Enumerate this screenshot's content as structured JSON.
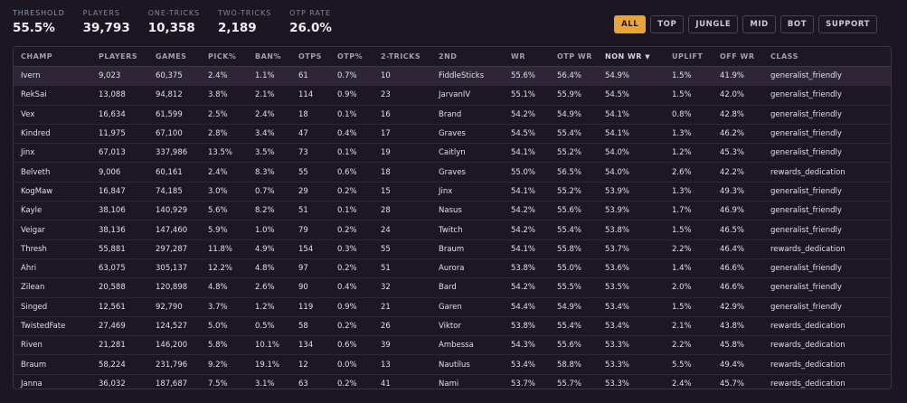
{
  "stats": [
    {
      "label": "THRESHOLD",
      "value": "55.5%"
    },
    {
      "label": "PLAYERS",
      "value": "39,793"
    },
    {
      "label": "ONE-TRICKS",
      "value": "10,358"
    },
    {
      "label": "TWO-TRICKS",
      "value": "2,189"
    },
    {
      "label": "OTP RATE",
      "value": "26.0%"
    }
  ],
  "filters": [
    "ALL",
    "TOP",
    "JUNGLE",
    "MID",
    "BOT",
    "SUPPORT"
  ],
  "active_filter": "ALL",
  "columns": [
    "CHAMP",
    "PLAYERS",
    "GAMES",
    "PICK%",
    "BAN%",
    "OTPS",
    "OTP%",
    "2-TRICKS",
    "2ND",
    "WR",
    "OTP WR",
    "NON WR",
    "UPLIFT",
    "OFF WR",
    "CLASS"
  ],
  "sort_indicator": "▼",
  "rows": [
    [
      "Ivern",
      "9,023",
      "60,375",
      "2.4%",
      "1.1%",
      "61",
      "0.7%",
      "10",
      "FiddleSticks",
      "55.6%",
      "56.4%",
      "54.9%",
      "1.5%",
      "41.9%",
      "generalist_friendly"
    ],
    [
      "RekSai",
      "13,088",
      "94,812",
      "3.8%",
      "2.1%",
      "114",
      "0.9%",
      "23",
      "JarvanIV",
      "55.1%",
      "55.9%",
      "54.5%",
      "1.5%",
      "42.0%",
      "generalist_friendly"
    ],
    [
      "Vex",
      "16,634",
      "61,599",
      "2.5%",
      "2.4%",
      "18",
      "0.1%",
      "16",
      "Brand",
      "54.2%",
      "54.9%",
      "54.1%",
      "0.8%",
      "42.8%",
      "generalist_friendly"
    ],
    [
      "Kindred",
      "11,975",
      "67,100",
      "2.8%",
      "3.4%",
      "47",
      "0.4%",
      "17",
      "Graves",
      "54.5%",
      "55.4%",
      "54.1%",
      "1.3%",
      "46.2%",
      "generalist_friendly"
    ],
    [
      "Jinx",
      "67,013",
      "337,986",
      "13.5%",
      "3.5%",
      "73",
      "0.1%",
      "19",
      "Caitlyn",
      "54.1%",
      "55.2%",
      "54.0%",
      "1.2%",
      "45.3%",
      "generalist_friendly"
    ],
    [
      "Belveth",
      "9,006",
      "60,161",
      "2.4%",
      "8.3%",
      "55",
      "0.6%",
      "18",
      "Graves",
      "55.0%",
      "56.5%",
      "54.0%",
      "2.6%",
      "42.2%",
      "rewards_dedication"
    ],
    [
      "KogMaw",
      "16,847",
      "74,185",
      "3.0%",
      "0.7%",
      "29",
      "0.2%",
      "15",
      "Jinx",
      "54.1%",
      "55.2%",
      "53.9%",
      "1.3%",
      "49.3%",
      "generalist_friendly"
    ],
    [
      "Kayle",
      "38,106",
      "140,929",
      "5.6%",
      "8.2%",
      "51",
      "0.1%",
      "28",
      "Nasus",
      "54.2%",
      "55.6%",
      "53.9%",
      "1.7%",
      "46.9%",
      "generalist_friendly"
    ],
    [
      "Veigar",
      "38,136",
      "147,460",
      "5.9%",
      "1.0%",
      "79",
      "0.2%",
      "24",
      "Twitch",
      "54.2%",
      "55.4%",
      "53.8%",
      "1.5%",
      "46.5%",
      "generalist_friendly"
    ],
    [
      "Thresh",
      "55,881",
      "297,287",
      "11.8%",
      "4.9%",
      "154",
      "0.3%",
      "55",
      "Braum",
      "54.1%",
      "55.8%",
      "53.7%",
      "2.2%",
      "46.4%",
      "rewards_dedication"
    ],
    [
      "Ahri",
      "63,075",
      "305,137",
      "12.2%",
      "4.8%",
      "97",
      "0.2%",
      "51",
      "Aurora",
      "53.8%",
      "55.0%",
      "53.6%",
      "1.4%",
      "46.6%",
      "generalist_friendly"
    ],
    [
      "Zilean",
      "20,588",
      "120,898",
      "4.8%",
      "2.6%",
      "90",
      "0.4%",
      "32",
      "Bard",
      "54.2%",
      "55.5%",
      "53.5%",
      "2.0%",
      "46.6%",
      "generalist_friendly"
    ],
    [
      "Singed",
      "12,561",
      "92,790",
      "3.7%",
      "1.2%",
      "119",
      "0.9%",
      "21",
      "Garen",
      "54.4%",
      "54.9%",
      "53.4%",
      "1.5%",
      "42.9%",
      "generalist_friendly"
    ],
    [
      "TwistedFate",
      "27,469",
      "124,527",
      "5.0%",
      "0.5%",
      "58",
      "0.2%",
      "26",
      "Viktor",
      "53.8%",
      "55.4%",
      "53.4%",
      "2.1%",
      "43.8%",
      "rewards_dedication"
    ],
    [
      "Riven",
      "21,281",
      "146,200",
      "5.8%",
      "10.1%",
      "134",
      "0.6%",
      "39",
      "Ambessa",
      "54.3%",
      "55.6%",
      "53.3%",
      "2.2%",
      "45.8%",
      "rewards_dedication"
    ],
    [
      "Braum",
      "58,224",
      "231,796",
      "9.2%",
      "19.1%",
      "12",
      "0.0%",
      "13",
      "Nautilus",
      "53.4%",
      "58.8%",
      "53.3%",
      "5.5%",
      "49.4%",
      "rewards_dedication"
    ],
    [
      "Janna",
      "36,032",
      "187,687",
      "7.5%",
      "3.1%",
      "63",
      "0.2%",
      "41",
      "Nami",
      "53.7%",
      "55.7%",
      "53.3%",
      "2.4%",
      "45.7%",
      "rewards_dedication"
    ]
  ]
}
